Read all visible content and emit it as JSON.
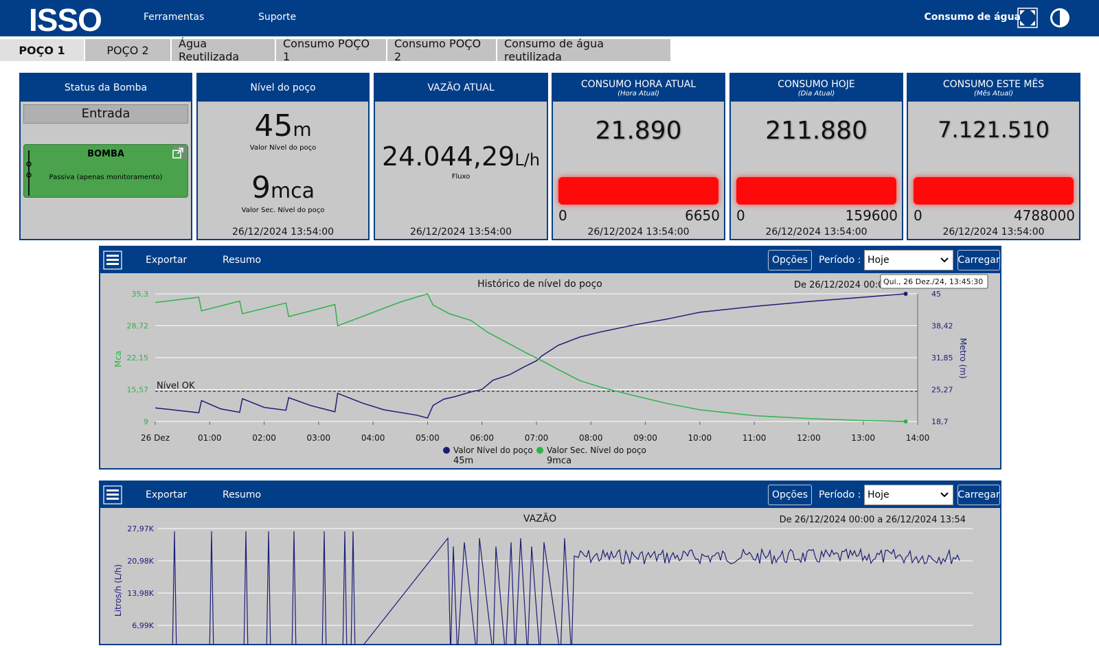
{
  "header": {
    "logo": "ISSO",
    "nav": [
      "Ferramentas",
      "Suporte"
    ],
    "title": "Consumo de água",
    "icons": [
      "fullscreen-icon",
      "contrast-icon"
    ]
  },
  "tabs": [
    "POÇO 1",
    "POÇO 2",
    "Água Reutilizada",
    "Consumo POÇO 1",
    "Consumo POÇO 2",
    "Consumo de água reutilizada"
  ],
  "cards": {
    "status": {
      "title": "Status da Bomba",
      "state": "Entrada",
      "pump_title": "BOMBA",
      "pump_desc": "Passiva (apenas monitoramento)"
    },
    "level": {
      "title": "Nível do poço",
      "value1": "45",
      "unit1": "m",
      "label1": "Valor Nível do poço",
      "value2": "9",
      "unit2": "mca",
      "label2": "Valor Sec. Nível do poço",
      "timestamp": "26/12/2024 13:54:00"
    },
    "flow": {
      "title": "VAZÃO ATUAL",
      "value": "24.044,29",
      "unit": "L/h",
      "label": "Fluxo",
      "timestamp": "26/12/2024 13:54:00"
    },
    "hour": {
      "title": "CONSUMO HORA ATUAL",
      "subtitle": "(Hora Atual)",
      "value": "21.890",
      "min": "0",
      "max": "6650",
      "timestamp": "26/12/2024 13:54:00"
    },
    "day": {
      "title": "CONSUMO HOJE",
      "subtitle": "(Dia Atual)",
      "value": "211.880",
      "min": "0",
      "max": "159600",
      "timestamp": "26/12/2024 13:54:00"
    },
    "month": {
      "title": "CONSUMO ESTE MÊS",
      "subtitle": "(Mês Atual)",
      "value": "7.121.510",
      "min": "0",
      "max": "4788000",
      "timestamp": "26/12/2024 13:54:00"
    },
    "bar_color": "#ff0a0a"
  },
  "toolbar": {
    "export": "Exportar",
    "summary": "Resumo",
    "options": "Opções",
    "period_label": "Período :",
    "period_value": "Hoje",
    "load": "Carregar"
  },
  "chart_data": [
    {
      "type": "line",
      "title": "Histórico de nível do poço",
      "range_text": "De 26/12/2024 00:0",
      "tooltip": "Qui., 26 Dez./24, 13:45:30",
      "x_ticks": [
        "26 Dez",
        "01:00",
        "02:00",
        "03:00",
        "04:00",
        "05:00",
        "06:00",
        "07:00",
        "08:00",
        "09:00",
        "10:00",
        "11:00",
        "12:00",
        "13:00",
        "14:00"
      ],
      "y_left": {
        "label": "Mca",
        "ticks": [
          "35,3",
          "28,72",
          "22,15",
          "15,57",
          "9"
        ],
        "range": [
          9,
          35.3
        ]
      },
      "y_right": {
        "label": "Metro (m)",
        "ticks": [
          "45",
          "38,42",
          "31,85",
          "25,27",
          "18,7"
        ],
        "range": [
          18.7,
          45
        ]
      },
      "threshold": {
        "label": "Nível OK",
        "value_mca": 15.2
      },
      "series": [
        {
          "name": "Valor Nível do poço",
          "axis": "right",
          "color": "#1c1c78",
          "last": "45m",
          "points": [
            [
              0,
              21.5
            ],
            [
              0.4,
              21
            ],
            [
              0.8,
              20.5
            ],
            [
              0.85,
              23
            ],
            [
              1.2,
              21.3
            ],
            [
              1.55,
              20.6
            ],
            [
              1.6,
              23.4
            ],
            [
              2.0,
              21.6
            ],
            [
              2.4,
              21
            ],
            [
              2.45,
              23.6
            ],
            [
              2.85,
              22
            ],
            [
              3.3,
              20.7
            ],
            [
              3.35,
              24.5
            ],
            [
              3.8,
              22.5
            ],
            [
              4.2,
              21.1
            ],
            [
              4.8,
              20
            ],
            [
              5.0,
              19.4
            ],
            [
              5.1,
              22
            ],
            [
              5.3,
              23.3
            ],
            [
              5.5,
              23.8
            ],
            [
              5.8,
              24.8
            ],
            [
              6.0,
              25.3
            ],
            [
              6.2,
              27.2
            ],
            [
              6.5,
              28.3
            ],
            [
              6.8,
              30.1
            ],
            [
              7.0,
              31.2
            ],
            [
              7.1,
              32.2
            ],
            [
              7.4,
              34.4
            ],
            [
              7.8,
              36.1
            ],
            [
              8.2,
              37.2
            ],
            [
              8.8,
              38.6
            ],
            [
              9.4,
              39.8
            ],
            [
              10.0,
              41.2
            ],
            [
              11.0,
              42.4
            ],
            [
              12.0,
              43.4
            ],
            [
              13.0,
              44.3
            ],
            [
              13.78,
              45
            ]
          ]
        },
        {
          "name": "Valor Sec. Nível do poço",
          "axis": "left",
          "color": "#2db34a",
          "last": "9mca",
          "points": [
            [
              0,
              33.5
            ],
            [
              0.8,
              34.6
            ],
            [
              0.85,
              31.8
            ],
            [
              1.55,
              33.8
            ],
            [
              1.6,
              31.2
            ],
            [
              2.4,
              33.4
            ],
            [
              2.45,
              30.6
            ],
            [
              3.3,
              33.1
            ],
            [
              3.35,
              28.7
            ],
            [
              4.5,
              33.6
            ],
            [
              5.0,
              35.3
            ],
            [
              5.1,
              33.0
            ],
            [
              5.4,
              31.2
            ],
            [
              5.8,
              29.8
            ],
            [
              6.1,
              27.4
            ],
            [
              6.5,
              25.0
            ],
            [
              6.8,
              23.2
            ],
            [
              7.1,
              21.5
            ],
            [
              7.4,
              19.7
            ],
            [
              7.8,
              17.4
            ],
            [
              8.2,
              16.0
            ],
            [
              8.8,
              14.3
            ],
            [
              9.4,
              12.7
            ],
            [
              10.0,
              11.4
            ],
            [
              11.0,
              10.2
            ],
            [
              12.0,
              9.6
            ],
            [
              13.0,
              9.2
            ],
            [
              13.78,
              9
            ]
          ]
        }
      ]
    },
    {
      "type": "line",
      "title": "VAZÃO",
      "range_text": "De 26/12/2024 00:00 a 26/12/2024 13:54",
      "y_left": {
        "label": "Litros/h (L/h)",
        "ticks": [
          "27,97K",
          "20,98K",
          "13,98K",
          "6,99K"
        ]
      },
      "series": [
        {
          "name": "Fluxo",
          "color": "#1c1c78"
        }
      ]
    }
  ]
}
